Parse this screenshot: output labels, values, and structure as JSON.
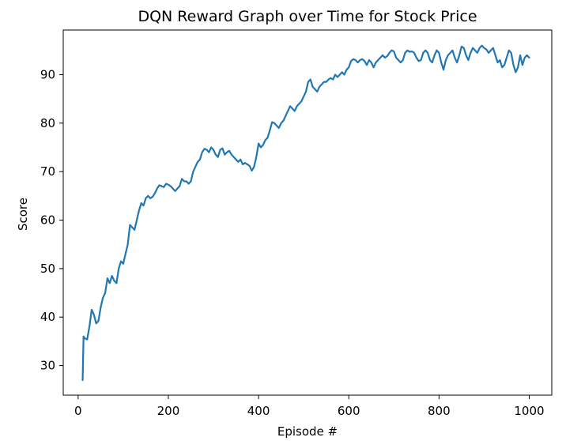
{
  "chart_data": {
    "type": "line",
    "title": "DQN Reward Graph over Time for Stock Price",
    "xlabel": "Episode #",
    "ylabel": "Score",
    "xlim": [
      -33,
      1050
    ],
    "ylim": [
      23.9,
      99.2
    ],
    "xticks": [
      0,
      200,
      400,
      600,
      800,
      1000
    ],
    "yticks": [
      30,
      40,
      50,
      60,
      70,
      80,
      90
    ],
    "grid": false,
    "line_color": "#1f77b4",
    "series": [
      {
        "points": [
          [
            10,
            27
          ],
          [
            12,
            36
          ],
          [
            15,
            35.6
          ],
          [
            20,
            35.4
          ],
          [
            25,
            38
          ],
          [
            30,
            41.5
          ],
          [
            35,
            40.5
          ],
          [
            40,
            38.7
          ],
          [
            45,
            39.2
          ],
          [
            50,
            42
          ],
          [
            55,
            44
          ],
          [
            60,
            45
          ],
          [
            65,
            48
          ],
          [
            70,
            47
          ],
          [
            75,
            48.5
          ],
          [
            80,
            47.5
          ],
          [
            85,
            47
          ],
          [
            90,
            50
          ],
          [
            95,
            51.5
          ],
          [
            100,
            51
          ],
          [
            105,
            53
          ],
          [
            110,
            55
          ],
          [
            115,
            59
          ],
          [
            120,
            58.5
          ],
          [
            125,
            58
          ],
          [
            130,
            60
          ],
          [
            135,
            62
          ],
          [
            140,
            63.5
          ],
          [
            145,
            63
          ],
          [
            150,
            64.5
          ],
          [
            155,
            65
          ],
          [
            160,
            64.5
          ],
          [
            165,
            64.8
          ],
          [
            170,
            65.5
          ],
          [
            175,
            66.5
          ],
          [
            180,
            67.2
          ],
          [
            185,
            67
          ],
          [
            190,
            66.8
          ],
          [
            195,
            67.5
          ],
          [
            200,
            67.3
          ],
          [
            205,
            67
          ],
          [
            210,
            66.5
          ],
          [
            215,
            66
          ],
          [
            220,
            66.5
          ],
          [
            225,
            67
          ],
          [
            230,
            68.5
          ],
          [
            235,
            68
          ],
          [
            240,
            68
          ],
          [
            245,
            67.5
          ],
          [
            250,
            68
          ],
          [
            255,
            70
          ],
          [
            260,
            71
          ],
          [
            265,
            72
          ],
          [
            270,
            72.5
          ],
          [
            275,
            74
          ],
          [
            280,
            74.7
          ],
          [
            285,
            74.5
          ],
          [
            290,
            74
          ],
          [
            295,
            75
          ],
          [
            300,
            74.5
          ],
          [
            305,
            73.5
          ],
          [
            310,
            73
          ],
          [
            315,
            74.5
          ],
          [
            320,
            74.8
          ],
          [
            325,
            73.5
          ],
          [
            330,
            74
          ],
          [
            335,
            74.3
          ],
          [
            340,
            73.5
          ],
          [
            345,
            73
          ],
          [
            350,
            72.5
          ],
          [
            355,
            72
          ],
          [
            360,
            72.5
          ],
          [
            365,
            71.5
          ],
          [
            370,
            71.8
          ],
          [
            375,
            71.5
          ],
          [
            380,
            71.2
          ],
          [
            385,
            70.2
          ],
          [
            390,
            71
          ],
          [
            395,
            73
          ],
          [
            400,
            75.8
          ],
          [
            405,
            75
          ],
          [
            410,
            75.5
          ],
          [
            415,
            76.5
          ],
          [
            420,
            77
          ],
          [
            425,
            78.5
          ],
          [
            430,
            80.2
          ],
          [
            435,
            80
          ],
          [
            440,
            79.5
          ],
          [
            445,
            79
          ],
          [
            450,
            80
          ],
          [
            455,
            80.5
          ],
          [
            460,
            81.5
          ],
          [
            465,
            82.5
          ],
          [
            470,
            83.5
          ],
          [
            475,
            83
          ],
          [
            480,
            82.5
          ],
          [
            485,
            83.5
          ],
          [
            490,
            84
          ],
          [
            495,
            84.5
          ],
          [
            500,
            85.5
          ],
          [
            505,
            86.5
          ],
          [
            510,
            88.5
          ],
          [
            515,
            89
          ],
          [
            520,
            87.5
          ],
          [
            525,
            87
          ],
          [
            530,
            86.5
          ],
          [
            535,
            87.5
          ],
          [
            540,
            88
          ],
          [
            545,
            88.5
          ],
          [
            550,
            88.5
          ],
          [
            555,
            89
          ],
          [
            560,
            89.3
          ],
          [
            565,
            89
          ],
          [
            570,
            90
          ],
          [
            575,
            89.5
          ],
          [
            580,
            90
          ],
          [
            585,
            90.5
          ],
          [
            590,
            90
          ],
          [
            595,
            91
          ],
          [
            600,
            91.5
          ],
          [
            605,
            92.8
          ],
          [
            610,
            93.2
          ],
          [
            615,
            93
          ],
          [
            620,
            92.5
          ],
          [
            625,
            93
          ],
          [
            630,
            93.2
          ],
          [
            635,
            92.8
          ],
          [
            640,
            92
          ],
          [
            645,
            93
          ],
          [
            650,
            92.5
          ],
          [
            655,
            91.5
          ],
          [
            660,
            92.5
          ],
          [
            665,
            93
          ],
          [
            670,
            93.5
          ],
          [
            675,
            94
          ],
          [
            680,
            93.5
          ],
          [
            685,
            93.8
          ],
          [
            690,
            94.5
          ],
          [
            695,
            95
          ],
          [
            700,
            94.8
          ],
          [
            705,
            93.5
          ],
          [
            710,
            93
          ],
          [
            715,
            92.5
          ],
          [
            720,
            93
          ],
          [
            725,
            94.5
          ],
          [
            730,
            95
          ],
          [
            735,
            94.7
          ],
          [
            740,
            94.8
          ],
          [
            745,
            94.5
          ],
          [
            750,
            93.5
          ],
          [
            755,
            92.8
          ],
          [
            760,
            93
          ],
          [
            765,
            94.5
          ],
          [
            770,
            95
          ],
          [
            775,
            94.5
          ],
          [
            780,
            93
          ],
          [
            785,
            92.5
          ],
          [
            790,
            94
          ],
          [
            795,
            95
          ],
          [
            800,
            94.5
          ],
          [
            805,
            92.5
          ],
          [
            810,
            91
          ],
          [
            815,
            93
          ],
          [
            820,
            94
          ],
          [
            825,
            94.5
          ],
          [
            830,
            95
          ],
          [
            835,
            93.5
          ],
          [
            840,
            92.5
          ],
          [
            845,
            94
          ],
          [
            850,
            95.8
          ],
          [
            855,
            95.5
          ],
          [
            860,
            94
          ],
          [
            865,
            93
          ],
          [
            870,
            94.5
          ],
          [
            875,
            95.5
          ],
          [
            880,
            95
          ],
          [
            885,
            94.5
          ],
          [
            890,
            95.5
          ],
          [
            895,
            96
          ],
          [
            900,
            95.5
          ],
          [
            905,
            95.2
          ],
          [
            910,
            94.5
          ],
          [
            915,
            95
          ],
          [
            920,
            95.5
          ],
          [
            925,
            94
          ],
          [
            930,
            92.5
          ],
          [
            935,
            93
          ],
          [
            940,
            91.5
          ],
          [
            945,
            92
          ],
          [
            950,
            93.5
          ],
          [
            955,
            95
          ],
          [
            960,
            94.5
          ],
          [
            965,
            92
          ],
          [
            970,
            90.5
          ],
          [
            975,
            91.5
          ],
          [
            980,
            94
          ],
          [
            985,
            92
          ],
          [
            990,
            93.5
          ],
          [
            995,
            94
          ],
          [
            1000,
            93.5
          ]
        ]
      }
    ]
  }
}
